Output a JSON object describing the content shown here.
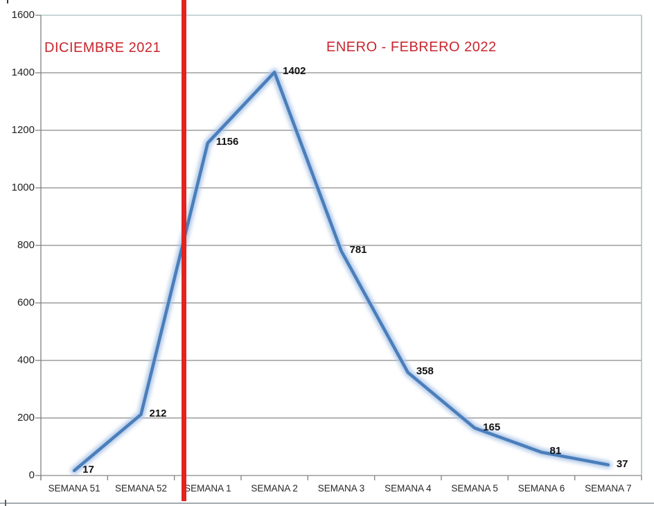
{
  "chart_data": {
    "type": "line",
    "categories": [
      "SEMANA 51",
      "SEMANA 52",
      "SEMANA 1",
      "SEMANA 2",
      "SEMANA 3",
      "SEMANA 4",
      "SEMANA 5",
      "SEMANA 6",
      "SEMANA 7"
    ],
    "values": [
      17,
      212,
      1156,
      1402,
      781,
      358,
      165,
      81,
      37
    ],
    "data_labels": [
      "17",
      "212",
      "1156",
      "1402",
      "781",
      "358",
      "165",
      "81",
      "37"
    ],
    "title": "",
    "xlabel": "",
    "ylabel": "",
    "ylim": [
      0,
      1600
    ],
    "ytick_step": 200,
    "yticks": [
      "0",
      "200",
      "400",
      "600",
      "800",
      "1000",
      "1200",
      "1400",
      "1600"
    ],
    "grid": "horizontal-only",
    "legend": "none",
    "annotations": [
      {
        "text": "DICIEMBRE 2021",
        "color": "#C9252D",
        "side": "left-of-divider"
      },
      {
        "text": "ENERO - FEBRERO 2022",
        "color": "#C9252D",
        "side": "right-of-divider"
      }
    ],
    "divider": {
      "type": "vertical-line",
      "between": [
        "SEMANA 52",
        "SEMANA 1"
      ],
      "color": "#E2231F"
    },
    "colors": {
      "line": "#4A7EBB",
      "line_glow": "#A9C3E5",
      "gridline": "#898989",
      "axis": "#7F7F7F",
      "chart_border": "#A3BDBF",
      "tick_text": "#1F1F1F",
      "data_label_text": "#111111",
      "bottom_rule": "#A3A9AD"
    }
  }
}
